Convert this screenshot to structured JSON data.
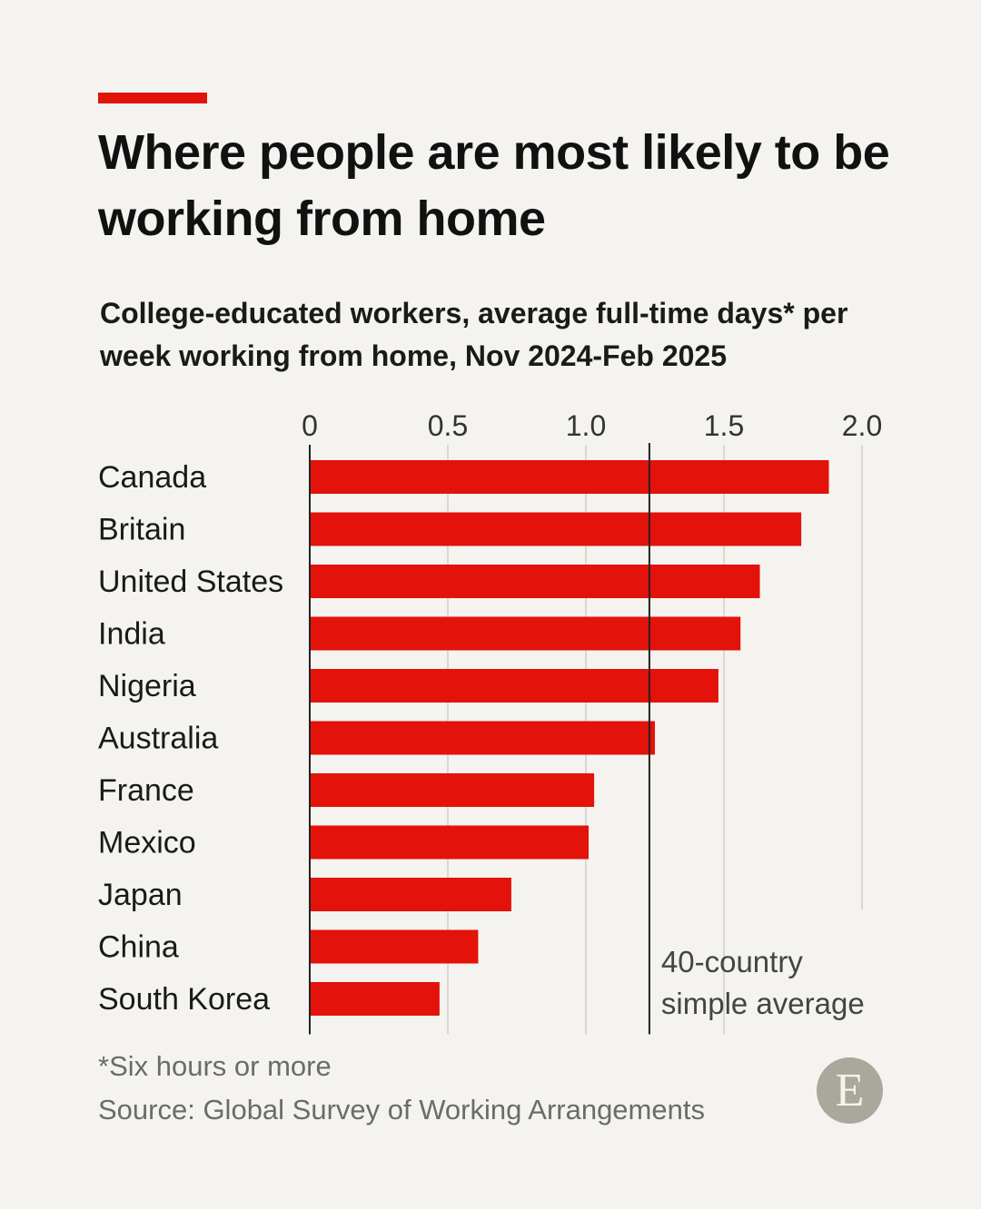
{
  "colors": {
    "accent": "#e3120b",
    "bar": "#e3120b",
    "text": "#1a1a1a",
    "grid": "#d9d8d3",
    "muted": "#6b6b6b"
  },
  "header": {
    "title": "Where people are most likely to be working from home",
    "subtitle": "College-educated workers, average full-time days* per week working from home, Nov 2024-Feb 2025"
  },
  "chart_data": {
    "type": "bar",
    "orientation": "horizontal",
    "categories": [
      "Canada",
      "Britain",
      "United States",
      "India",
      "Nigeria",
      "Australia",
      "France",
      "Mexico",
      "Japan",
      "China",
      "South Korea"
    ],
    "values": [
      1.88,
      1.78,
      1.63,
      1.56,
      1.48,
      1.25,
      1.03,
      1.01,
      0.73,
      0.61,
      0.47
    ],
    "xlim": [
      0,
      2.0
    ],
    "xticks": [
      0,
      0.5,
      1.0,
      1.5,
      2.0
    ],
    "xtick_labels": [
      "0",
      "0.5",
      "1.0",
      "1.5",
      "2.0"
    ],
    "reference_line": {
      "value": 1.23,
      "label_line1": "40-country",
      "label_line2": "simple average"
    }
  },
  "footer": {
    "footnote": "*Six hours or more",
    "source": "Source: Global Survey of Working Arrangements",
    "logo_letter": "E"
  }
}
